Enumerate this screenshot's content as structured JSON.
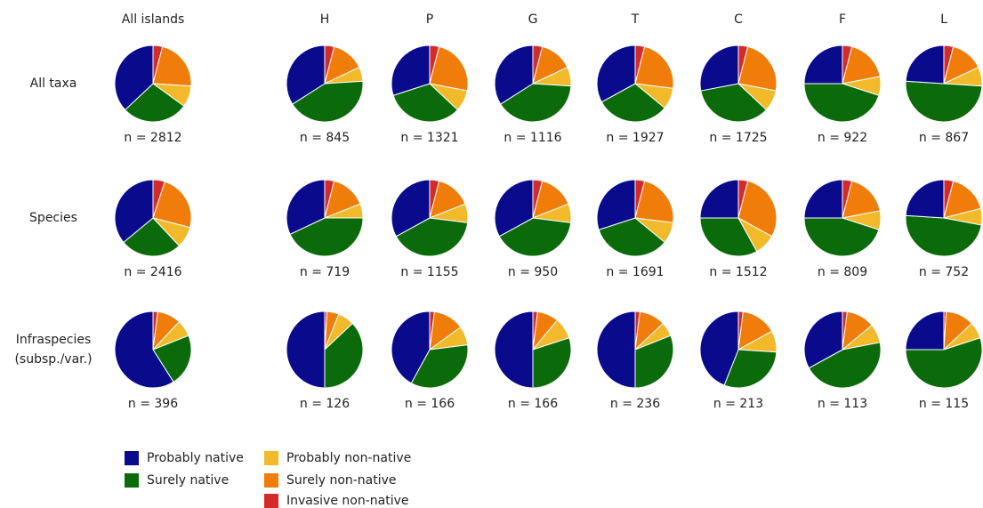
{
  "chart_data": {
    "type": "pie",
    "columns": [
      "All islands",
      "H",
      "P",
      "G",
      "T",
      "C",
      "F",
      "L"
    ],
    "rows": [
      [
        "All taxa"
      ],
      [
        "Species"
      ],
      [
        "Infraspecies",
        "(subsp./var.)"
      ]
    ],
    "segments": [
      {
        "name": "Invasive non-native",
        "color": "#d42a2a"
      },
      {
        "name": "Surely non-native",
        "color": "#f07d0a"
      },
      {
        "name": "Probably non-native",
        "color": "#f2b92b"
      },
      {
        "name": "Surely native",
        "color": "#0b6b0b"
      },
      {
        "name": "Probably native",
        "color": "#0a0a8c"
      }
    ],
    "pies": [
      [
        {
          "label": "n = 2812",
          "values": [
            4,
            22,
            9,
            28,
            37
          ]
        },
        {
          "label": "n = 845",
          "values": [
            4,
            14,
            6,
            42,
            34
          ]
        },
        {
          "label": "n = 1321",
          "values": [
            4,
            24,
            9,
            33,
            30
          ]
        },
        {
          "label": "n = 1116",
          "values": [
            4,
            14,
            8,
            40,
            34
          ]
        },
        {
          "label": "n = 1927",
          "values": [
            4,
            23,
            9,
            31,
            33
          ]
        },
        {
          "label": "n = 1725",
          "values": [
            4,
            24,
            9,
            35,
            28
          ]
        },
        {
          "label": "n = 922",
          "values": [
            4,
            18,
            8,
            45,
            25
          ]
        },
        {
          "label": "n = 867",
          "values": [
            4,
            14,
            8,
            50,
            24
          ]
        }
      ],
      [
        {
          "label": "n = 2416",
          "values": [
            5,
            24,
            9,
            26,
            36
          ]
        },
        {
          "label": "n = 719",
          "values": [
            4,
            15,
            6,
            43,
            32
          ]
        },
        {
          "label": "n = 1155",
          "values": [
            4,
            15,
            8,
            40,
            33
          ]
        },
        {
          "label": "n = 950",
          "values": [
            4,
            15,
            8,
            40,
            33
          ]
        },
        {
          "label": "n = 1691",
          "values": [
            4,
            23,
            9,
            34,
            30
          ]
        },
        {
          "label": "n = 1512",
          "values": [
            4,
            29,
            9,
            33,
            25
          ]
        },
        {
          "label": "n = 809",
          "values": [
            4,
            18,
            8,
            45,
            25
          ]
        },
        {
          "label": "n = 752",
          "values": [
            4,
            17,
            7,
            48,
            24
          ]
        }
      ],
      [
        {
          "label": "n = 396",
          "values": [
            2,
            10,
            7,
            22,
            59
          ]
        },
        {
          "label": "n = 126",
          "values": [
            1,
            5,
            7,
            37,
            50
          ]
        },
        {
          "label": "n = 166",
          "values": [
            2,
            13,
            8,
            35,
            42
          ]
        },
        {
          "label": "n = 166",
          "values": [
            2,
            9,
            9,
            30,
            50
          ]
        },
        {
          "label": "n = 236",
          "values": [
            2,
            11,
            6,
            31,
            50
          ]
        },
        {
          "label": "n = 213",
          "values": [
            2,
            15,
            9,
            30,
            44
          ]
        },
        {
          "label": "n = 113",
          "values": [
            2,
            12,
            8,
            45,
            33
          ]
        },
        {
          "label": "n = 115",
          "values": [
            1,
            12,
            7,
            55,
            25
          ]
        }
      ]
    ]
  }
}
